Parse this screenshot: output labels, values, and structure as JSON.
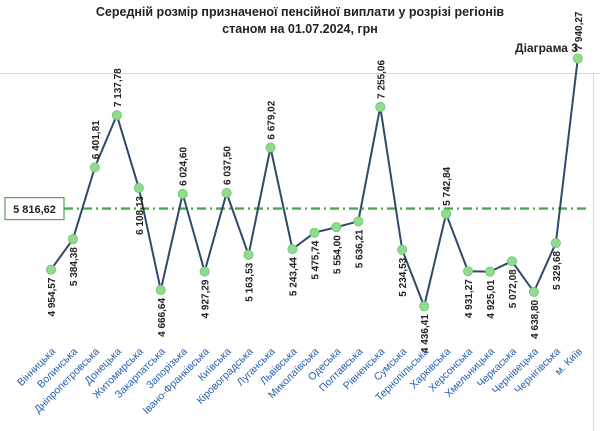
{
  "title_line1": "Середній розмір призначеної пенсійної виплати у розрізі регіонів",
  "title_line2": "станом на 01.07.2024, грн",
  "diagram_label": "Діаграма 3",
  "colors": {
    "line": "#2e4a6b",
    "marker": "#8fdc8f",
    "average": "#4fa84f",
    "average_box": "#4fa84f"
  },
  "chart_data": {
    "type": "line",
    "categories": [
      "Вінницька",
      "Волинська",
      "Дніпропетровська",
      "Донецька",
      "Житомирська",
      "Закарпатська",
      "Запорізька",
      "Івано-Франківська",
      "Київська",
      "Кіровоградська",
      "Луганська",
      "Львівська",
      "Миколаївська",
      "Одеська",
      "Полтавська",
      "Рівненська",
      "Сумська",
      "Тернопільська",
      "Харківська",
      "Херсонська",
      "Хмельницька",
      "Черкаська",
      "Чернівецька",
      "Чернігівська",
      "м. Київ"
    ],
    "values": [
      4954.57,
      5384.38,
      6401.81,
      7137.78,
      6108.13,
      4666.64,
      6024.6,
      4927.29,
      6037.5,
      5163.53,
      6679.02,
      5243.44,
      5475.74,
      5554.0,
      5636.21,
      7255.06,
      5234.53,
      4436.41,
      5742.84,
      4931.27,
      4925.01,
      5072.08,
      4638.8,
      5329.68,
      7940.27
    ],
    "value_labels": [
      "4 954,57",
      "5 384,38",
      "6 401,81",
      "7 137,78",
      "6 108,13",
      "4 666,64",
      "6 024,60",
      "4 927,29",
      "6 037,50",
      "5 163,53",
      "6 679,02",
      "5 243,44",
      "5 475,74",
      "5 554,00",
      "5 636,21",
      "7 255,06",
      "5 234,53",
      "4 436,41",
      "5 742,84",
      "4 931,27",
      "4 925,01",
      "5 072,08",
      "4 638,80",
      "5 329,68",
      "7 940,27"
    ],
    "label_side": [
      "below",
      "below",
      "above",
      "above",
      "below",
      "below",
      "above",
      "below",
      "above",
      "below",
      "above",
      "below",
      "below",
      "below",
      "below",
      "above",
      "below",
      "below",
      "above",
      "below",
      "below",
      "below",
      "below",
      "below",
      "above"
    ],
    "average_value": 5816.62,
    "average_label": "5 816,62",
    "ylim": [
      4100,
      8300
    ],
    "grid": false
  }
}
